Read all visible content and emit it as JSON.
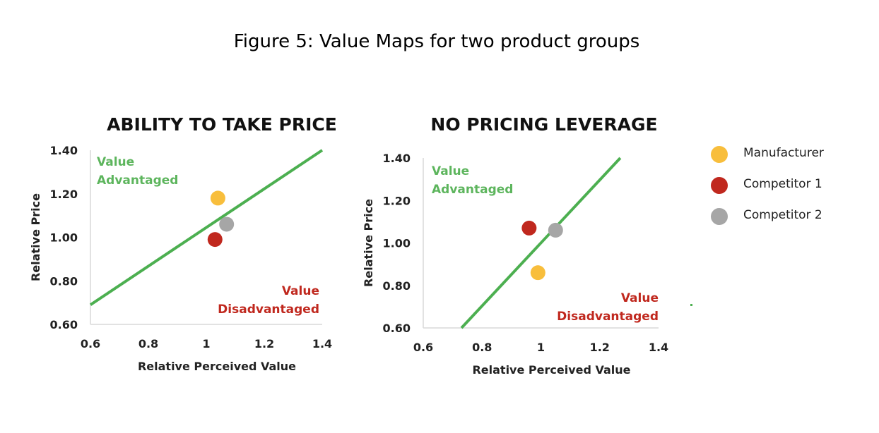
{
  "figure_title": "Figure 5: Value Maps for two product groups",
  "legend": [
    {
      "label": "Manufacturer",
      "color": "#F8BE3C"
    },
    {
      "label": "Competitor 1",
      "color": "#C0281E"
    },
    {
      "label": "Competitor 2",
      "color": "#A6A6A6"
    }
  ],
  "colors": {
    "value_line": "#4CAF50",
    "advantaged_text": "#5DB55D",
    "disadvantaged_text": "#C0281E"
  },
  "chart_data": [
    {
      "type": "scatter",
      "title": "ABILITY TO TAKE PRICE",
      "xlabel": "Relative Perceived Value",
      "ylabel": "Relative Price",
      "xlim": [
        0.6,
        1.4
      ],
      "ylim": [
        0.6,
        1.4
      ],
      "x_ticks": [
        "0.6",
        "0.8",
        "1",
        "1.2",
        "1.4"
      ],
      "y_ticks": [
        "0.60",
        "0.80",
        "1.00",
        "1.20",
        "1.40"
      ],
      "grid": false,
      "value_line": [
        [
          0.6,
          0.69
        ],
        [
          1.4,
          1.4
        ]
      ],
      "annotations": {
        "advantaged": [
          "Value",
          "Advantaged"
        ],
        "disadvantaged": [
          "Value",
          "Disadvantaged"
        ]
      },
      "series": [
        {
          "name": "Manufacturer",
          "x": [
            1.04
          ],
          "y": [
            1.18
          ]
        },
        {
          "name": "Competitor 1",
          "x": [
            1.03
          ],
          "y": [
            0.99
          ]
        },
        {
          "name": "Competitor 2",
          "x": [
            1.07
          ],
          "y": [
            1.06
          ]
        }
      ]
    },
    {
      "type": "scatter",
      "title": "NO PRICING LEVERAGE",
      "xlabel": "Relative Perceived Value",
      "ylabel": "Relative Price",
      "xlim": [
        0.6,
        1.4
      ],
      "ylim": [
        0.6,
        1.4
      ],
      "x_ticks": [
        "0.6",
        "0.8",
        "1",
        "1.2",
        "1.4"
      ],
      "y_ticks": [
        "0.60",
        "0.80",
        "1.00",
        "1.20",
        "1.40"
      ],
      "grid": false,
      "value_line": [
        [
          0.73,
          0.6
        ],
        [
          1.27,
          1.4
        ]
      ],
      "annotations": {
        "advantaged": [
          "Value",
          "Advantaged"
        ],
        "disadvantaged": [
          "Value",
          "Disadvantaged"
        ]
      },
      "series": [
        {
          "name": "Manufacturer",
          "x": [
            0.99
          ],
          "y": [
            0.86
          ]
        },
        {
          "name": "Competitor 1",
          "x": [
            0.96
          ],
          "y": [
            1.07
          ]
        },
        {
          "name": "Competitor 2",
          "x": [
            1.05
          ],
          "y": [
            1.06
          ]
        }
      ]
    }
  ]
}
